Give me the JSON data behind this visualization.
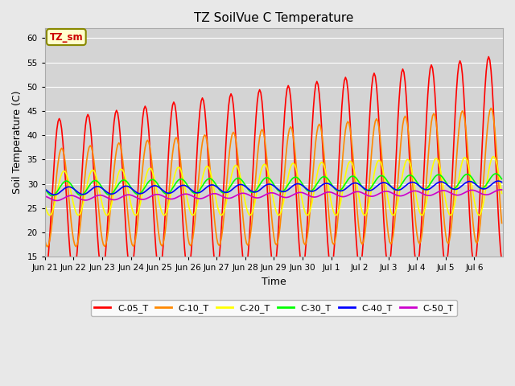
{
  "title": "TZ SoilVue C Temperature",
  "xlabel": "Time",
  "ylabel": "Soil Temperature (C)",
  "ylim": [
    15,
    62
  ],
  "yticks": [
    15,
    20,
    25,
    30,
    35,
    40,
    45,
    50,
    55,
    60
  ],
  "background_color": "#e8e8e8",
  "plot_bg_color": "#d4d4d4",
  "grid_color": "#ffffff",
  "series_colors": {
    "C-05_T": "#ff0000",
    "C-10_T": "#ff8800",
    "C-20_T": "#ffff00",
    "C-30_T": "#00ff00",
    "C-40_T": "#0000ff",
    "C-50_T": "#cc00cc"
  },
  "legend_label": "TZ_sm",
  "legend_box_color": "#ffffcc",
  "legend_box_edge": "#888800",
  "legend_text_color": "#cc0000",
  "num_days": 16,
  "x_tick_labels": [
    "Jun 21",
    "Jun 22",
    "Jun 23",
    "Jun 24",
    "Jun 25",
    "Jun 26",
    "Jun 27",
    "Jun 28",
    "Jun 29",
    "Jun 30",
    "Jul 1",
    "Jul 2",
    "Jul 3",
    "Jul 4",
    "Jul 5",
    "Jul 6"
  ],
  "line_width": 1.2
}
